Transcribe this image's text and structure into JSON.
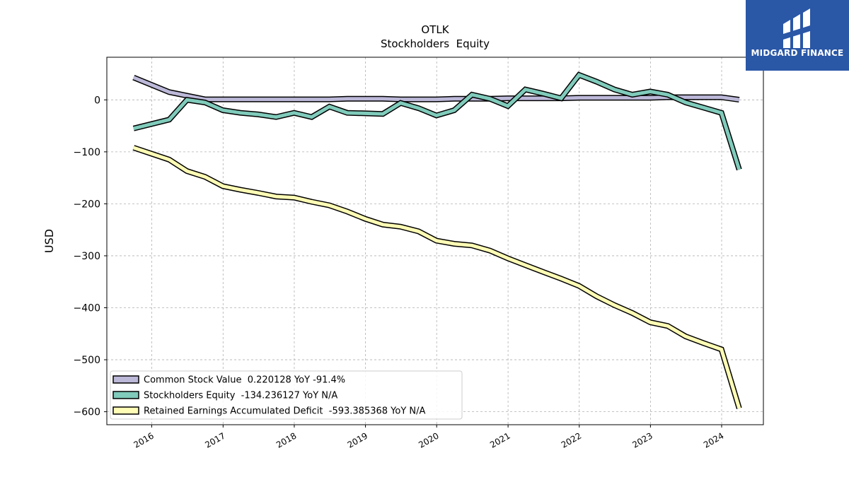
{
  "brand": {
    "name": "MIDGARD FINANCE",
    "bg_color": "#2a57a6"
  },
  "chart_data": {
    "type": "line",
    "title": "OTLK",
    "subtitle": "Stockholders  Equity",
    "ylabel": "USD",
    "xlabel": "",
    "ylim": [
      -625,
      82
    ],
    "xlim": [
      "2015-05-16",
      "2024-08-02"
    ],
    "x_ticks": [
      "2016",
      "2017",
      "2018",
      "2019",
      "2020",
      "2021",
      "2022",
      "2023",
      "2024"
    ],
    "y_ticks": [
      0,
      -100,
      -200,
      -300,
      -400,
      -500,
      -600
    ],
    "y_tick_labels": [
      "0",
      "−100",
      "−200",
      "−300",
      "−400",
      "−500",
      "−600"
    ],
    "grid": true,
    "legend_position": "lower-left",
    "x": [
      "2015-09-30",
      "2016-03-31",
      "2016-06-30",
      "2016-09-30",
      "2016-12-31",
      "2017-03-31",
      "2017-06-30",
      "2017-09-30",
      "2017-12-31",
      "2018-03-31",
      "2018-06-30",
      "2018-09-30",
      "2018-12-31",
      "2019-03-31",
      "2019-06-30",
      "2019-09-30",
      "2019-12-31",
      "2020-03-31",
      "2020-06-30",
      "2020-09-30",
      "2020-12-31",
      "2021-03-31",
      "2021-06-30",
      "2021-09-30",
      "2021-12-31",
      "2022-03-31",
      "2022-06-30",
      "2022-09-30",
      "2022-12-31",
      "2023-03-31",
      "2023-06-30",
      "2023-09-30",
      "2023-12-31",
      "2024-03-31"
    ],
    "series": [
      {
        "name": "Common Stock Value  0.220128 YoY -91.4%",
        "color": "#bcb8d8",
        "values": [
          43,
          15,
          8,
          1,
          1,
          1,
          1,
          1,
          1,
          1,
          1,
          2,
          2,
          2,
          1,
          1,
          1,
          2,
          2,
          2,
          3,
          3,
          3,
          3,
          4,
          4,
          4,
          4,
          4,
          5,
          5,
          5,
          5,
          0.22
        ]
      },
      {
        "name": "Stockholders Equity  -134.236127 YoY N/A",
        "color": "#80cbbb",
        "values": [
          -55,
          -38,
          0,
          -5,
          -20,
          -25,
          -28,
          -33,
          -25,
          -33,
          -13,
          -25,
          -26,
          -27,
          -6,
          -16,
          -30,
          -20,
          10,
          2,
          -12,
          20,
          12,
          3,
          48,
          35,
          20,
          10,
          16,
          10,
          -5,
          -15,
          -25,
          -134.2
        ]
      },
      {
        "name": "Retained Earnings Accumulated Deficit  -593.385368 YoY N/A",
        "color": "#fffcb5",
        "values": [
          -92,
          -115,
          -137,
          -148,
          -166,
          -173,
          -179,
          -186,
          -188,
          -196,
          -203,
          -215,
          -229,
          -240,
          -244,
          -253,
          -271,
          -277,
          -280,
          -290,
          -305,
          -318,
          -331,
          -344,
          -358,
          -378,
          -395,
          -410,
          -428,
          -435,
          -455,
          -468,
          -480,
          -593.4
        ]
      }
    ]
  }
}
